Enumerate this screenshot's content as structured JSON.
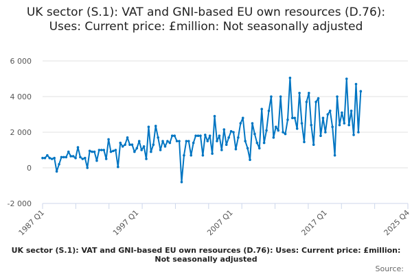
{
  "chart_data": {
    "type": "line",
    "title": "UK sector (S.1): VAT and GNI-based EU own resources (D.76): Uses: Current price: £million: Not seasonally adjusted",
    "x_ticks": [
      "1987 Q1",
      "1997 Q1",
      "2007 Q1",
      "2017 Q1",
      "2025 Q4"
    ],
    "y_ticks": [
      "-2 000",
      "0",
      "2 000",
      "4 000",
      "6 000"
    ],
    "y_tick_values": [
      -2000,
      0,
      2000,
      4000,
      6000
    ],
    "ylim": [
      -2000,
      6000
    ],
    "xlim": [
      "1987 Q1",
      "2025 Q4"
    ],
    "start": "1987 Q1",
    "frequency": "quarterly",
    "grid": "horizontal",
    "line_color": "#0075c2",
    "values": [
      550,
      550,
      700,
      550,
      500,
      550,
      -200,
      200,
      600,
      600,
      600,
      900,
      650,
      650,
      550,
      1150,
      600,
      500,
      550,
      0,
      950,
      900,
      900,
      400,
      1000,
      1000,
      1000,
      500,
      1600,
      900,
      950,
      1000,
      50,
      1400,
      1200,
      1300,
      1700,
      1300,
      1300,
      900,
      1100,
      1500,
      1000,
      1200,
      500,
      2300,
      900,
      1300,
      2350,
      1700,
      1000,
      1500,
      1200,
      1500,
      1400,
      1800,
      1800,
      1500,
      1500,
      -800,
      700,
      1500,
      1500,
      700,
      1400,
      1800,
      1800,
      1800,
      700,
      1850,
      1500,
      1800,
      800,
      2900,
      1500,
      1800,
      1000,
      2150,
      1300,
      1700,
      2050,
      2000,
      1050,
      1700,
      2500,
      2800,
      1500,
      1100,
      450,
      2500,
      1900,
      1400,
      1100,
      3300,
      1400,
      2100,
      3200,
      4000,
      1700,
      2300,
      2100,
      4000,
      2000,
      1900,
      2700,
      5050,
      2800,
      2800,
      2200,
      4200,
      2500,
      1450,
      3700,
      4200,
      2400,
      1300,
      3700,
      3900,
      1800,
      2800,
      2000,
      3000,
      3200,
      2300,
      700,
      4000,
      2400,
      3100,
      2500,
      5000,
      2400,
      3200,
      1850,
      4700,
      2000,
      4300
    ]
  },
  "footer": "UK sector (S.1): VAT and GNI-based EU own resources (D.76): Uses: Current price: £million: Not seasonally adjusted",
  "source_label": "Source:"
}
